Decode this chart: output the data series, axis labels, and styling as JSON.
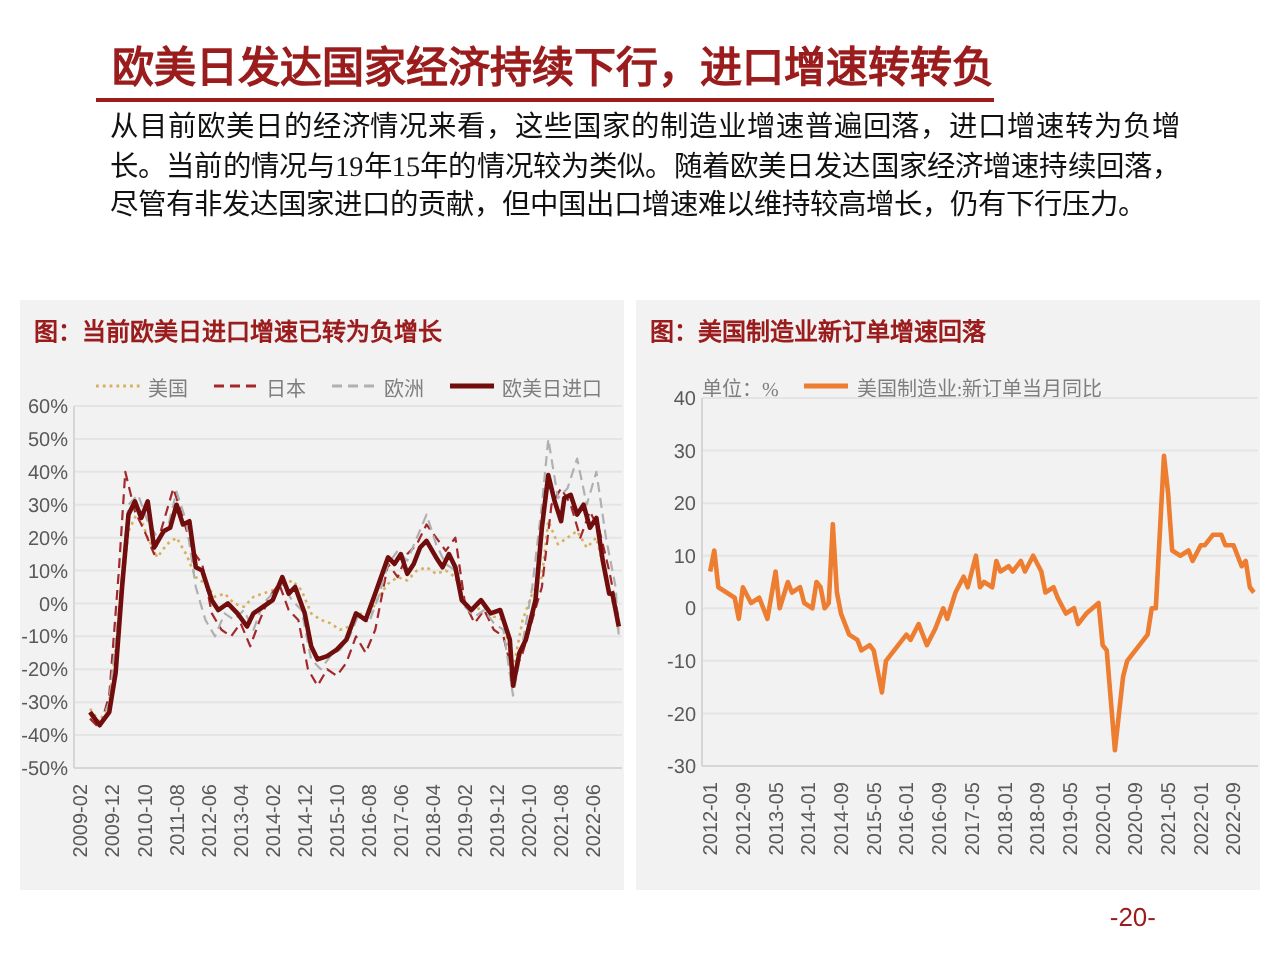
{
  "chart_data": [
    {
      "type": "other",
      "title": "欧美日发达国家经济持续下行，进口增速转转负",
      "subtitle": "从目前欧美日的经济情况来看，这些国家的制造业增速普遍回落，进口增速转为负增长。当前的情况与19年15年的情况较为类似。随着欧美日发达国家经济增速持续回落，尽管有非发达国家进口的贡献，但中国出口增速难以维持较高增长，仍有下行压力。",
      "annotations": [
        "-20-"
      ]
    },
    {
      "type": "line",
      "title": "图：当前欧美日进口增速已转为负增长",
      "legend": "top",
      "grid": "y",
      "xlim": [
        "2008-12",
        "2023-03"
      ],
      "xticks": [
        "2009-02",
        "2009-12",
        "2010-10",
        "2011-08",
        "2012-06",
        "2013-04",
        "2014-02",
        "2014-12",
        "2015-10",
        "2016-08",
        "2017-06",
        "2018-04",
        "2019-02",
        "2019-12",
        "2020-10",
        "2021-08",
        "2022-06"
      ],
      "ylim": [
        -50,
        60
      ],
      "yticks": [
        {
          "value": -50,
          "label": "-50%"
        },
        {
          "value": -40,
          "label": "-40%"
        },
        {
          "value": -30,
          "label": "-30%"
        },
        {
          "value": -20,
          "label": "-20%"
        },
        {
          "value": -10,
          "label": "-10%"
        },
        {
          "value": 0,
          "label": "0%"
        },
        {
          "value": 10,
          "label": "10%"
        },
        {
          "value": 20,
          "label": "20%"
        },
        {
          "value": 30,
          "label": "30%"
        },
        {
          "value": 40,
          "label": "40%"
        },
        {
          "value": 50,
          "label": "50%"
        },
        {
          "value": 60,
          "label": "60%"
        }
      ],
      "series": [
        {
          "name": "美国",
          "color": "#d6b15f",
          "line_style": "dotted",
          "x": [
            "2009-05",
            "2009-08",
            "2009-11",
            "2010-02",
            "2010-05",
            "2010-08",
            "2010-11",
            "2011-02",
            "2011-05",
            "2011-08",
            "2011-11",
            "2012-02",
            "2012-05",
            "2012-08",
            "2012-11",
            "2013-02",
            "2013-05",
            "2013-08",
            "2013-11",
            "2014-02",
            "2014-05",
            "2014-08",
            "2014-11",
            "2015-02",
            "2015-05",
            "2015-08",
            "2015-11",
            "2016-02",
            "2016-05",
            "2016-08",
            "2016-11",
            "2017-02",
            "2017-05",
            "2017-08",
            "2017-11",
            "2018-02",
            "2018-05",
            "2018-08",
            "2018-11",
            "2019-02",
            "2019-05",
            "2019-08",
            "2019-11",
            "2020-02",
            "2020-05",
            "2020-08",
            "2020-11",
            "2021-02",
            "2021-04",
            "2021-07",
            "2021-10",
            "2022-01",
            "2022-04",
            "2022-07",
            "2022-10",
            "2023-01",
            "2023-02"
          ],
          "values": [
            -32,
            -36,
            -30,
            -5,
            22,
            28,
            20,
            14,
            18,
            20,
            15,
            8,
            6,
            2,
            3,
            0,
            -1,
            2,
            3,
            4,
            5,
            7,
            4,
            -3,
            -5,
            -6,
            -8,
            -7,
            -3,
            -4,
            2,
            6,
            8,
            7,
            10,
            11,
            9,
            10,
            8,
            0,
            -2,
            -1,
            -4,
            -5,
            -20,
            -5,
            3,
            8,
            25,
            18,
            20,
            22,
            17,
            20,
            8,
            -3,
            -9
          ]
        },
        {
          "name": "日本",
          "color": "#a3282b",
          "line_style": "dashed",
          "x": [
            "2009-05",
            "2009-08",
            "2009-11",
            "2010-02",
            "2010-04",
            "2010-07",
            "2010-10",
            "2011-01",
            "2011-04",
            "2011-07",
            "2011-10",
            "2012-01",
            "2012-04",
            "2012-07",
            "2012-10",
            "2013-01",
            "2013-04",
            "2013-07",
            "2013-10",
            "2014-01",
            "2014-04",
            "2014-07",
            "2014-10",
            "2015-01",
            "2015-04",
            "2015-07",
            "2015-10",
            "2016-01",
            "2016-04",
            "2016-07",
            "2016-10",
            "2017-02",
            "2017-05",
            "2017-08",
            "2017-11",
            "2018-02",
            "2018-05",
            "2018-08",
            "2018-11",
            "2019-02",
            "2019-05",
            "2019-08",
            "2019-11",
            "2020-02",
            "2020-05",
            "2020-08",
            "2020-11",
            "2021-02",
            "2021-05",
            "2021-08",
            "2021-11",
            "2022-02",
            "2022-05",
            "2022-08",
            "2022-11",
            "2023-02"
          ],
          "values": [
            -35,
            -38,
            -28,
            10,
            40,
            28,
            22,
            15,
            25,
            35,
            26,
            16,
            12,
            -3,
            -8,
            -10,
            -6,
            -13,
            -5,
            2,
            6,
            -2,
            -5,
            -20,
            -25,
            -20,
            -22,
            -18,
            -10,
            -15,
            -8,
            12,
            8,
            15,
            18,
            24,
            20,
            16,
            20,
            0,
            -6,
            -2,
            -8,
            -10,
            -22,
            -15,
            -5,
            5,
            30,
            35,
            30,
            20,
            28,
            22,
            10,
            -5
          ]
        },
        {
          "name": "欧洲",
          "color": "#b0b0b0",
          "line_style": "dashed",
          "x": [
            "2009-05",
            "2009-08",
            "2009-11",
            "2010-02",
            "2010-05",
            "2010-08",
            "2010-11",
            "2011-02",
            "2011-05",
            "2011-08",
            "2011-11",
            "2012-02",
            "2012-05",
            "2012-08",
            "2012-11",
            "2013-02",
            "2013-05",
            "2013-08",
            "2013-11",
            "2014-02",
            "2014-05",
            "2014-08",
            "2014-11",
            "2015-02",
            "2015-05",
            "2015-08",
            "2015-11",
            "2016-02",
            "2016-05",
            "2016-08",
            "2016-11",
            "2017-02",
            "2017-05",
            "2017-08",
            "2017-11",
            "2018-02",
            "2018-05",
            "2018-08",
            "2018-11",
            "2019-02",
            "2019-05",
            "2019-08",
            "2019-11",
            "2020-02",
            "2020-05",
            "2020-08",
            "2020-11",
            "2021-02",
            "2021-04",
            "2021-07",
            "2021-10",
            "2022-01",
            "2022-04",
            "2022-07",
            "2022-10",
            "2023-01",
            "2023-02"
          ],
          "values": [
            -33,
            -37,
            -30,
            -2,
            30,
            33,
            25,
            20,
            22,
            34,
            25,
            5,
            -5,
            -10,
            -3,
            -5,
            -2,
            -8,
            0,
            3,
            6,
            1,
            -2,
            -17,
            -20,
            -16,
            -14,
            -10,
            -3,
            -6,
            2,
            12,
            16,
            13,
            20,
            27,
            18,
            12,
            10,
            -1,
            -4,
            -2,
            -6,
            -8,
            -28,
            -12,
            5,
            30,
            50,
            32,
            35,
            44,
            30,
            40,
            20,
            5,
            -10
          ]
        },
        {
          "name": "欧美日进口",
          "color": "#720d0d",
          "line_style": "solid",
          "x": [
            "2009-05",
            "2009-08",
            "2009-11",
            "2010-01",
            "2010-03",
            "2010-05",
            "2010-07",
            "2010-09",
            "2010-11",
            "2011-01",
            "2011-04",
            "2011-06",
            "2011-08",
            "2011-10",
            "2011-12",
            "2012-02",
            "2012-04",
            "2012-07",
            "2012-09",
            "2012-12",
            "2013-03",
            "2013-06",
            "2013-08",
            "2013-11",
            "2014-02",
            "2014-05",
            "2014-07",
            "2014-09",
            "2014-12",
            "2015-02",
            "2015-04",
            "2015-07",
            "2015-10",
            "2016-01",
            "2016-04",
            "2016-07",
            "2016-10",
            "2017-02",
            "2017-04",
            "2017-06",
            "2017-08",
            "2017-10",
            "2017-12",
            "2018-02",
            "2018-05",
            "2018-07",
            "2018-09",
            "2018-11",
            "2019-01",
            "2019-04",
            "2019-07",
            "2019-10",
            "2020-01",
            "2020-04",
            "2020-05",
            "2020-07",
            "2020-09",
            "2020-11",
            "2020-12",
            "2021-02",
            "2021-04",
            "2021-06",
            "2021-08",
            "2021-09",
            "2021-11",
            "2022-01",
            "2022-03",
            "2022-05",
            "2022-07",
            "2022-09",
            "2022-11",
            "2022-12",
            "2023-02"
          ],
          "values": [
            -33,
            -37,
            -33,
            -21,
            5,
            27,
            31,
            26,
            31,
            17,
            22,
            23,
            30,
            24,
            25,
            11,
            10,
            1,
            -2,
            0,
            -3,
            -7,
            -3,
            -1,
            1,
            8,
            3,
            5,
            -3,
            -13,
            -17,
            -16,
            -14,
            -11,
            -3,
            -5,
            3,
            14,
            12,
            15,
            9,
            12,
            17,
            19,
            14,
            11,
            15,
            11,
            1,
            -2,
            1,
            -3,
            -2,
            -11,
            -25,
            -15,
            -11,
            -3,
            1,
            23,
            39,
            31,
            25,
            32,
            33,
            27,
            30,
            23,
            26,
            13,
            3,
            3,
            -7
          ]
        }
      ]
    },
    {
      "type": "line",
      "title": "图：美国制造业新订单增速回落",
      "annotations": [
        "单位：%"
      ],
      "legend": "top left",
      "grid": "y",
      "xlim": [
        "2011-11",
        "2023-03"
      ],
      "xticks": [
        "2012-01",
        "2012-09",
        "2013-05",
        "2014-01",
        "2014-09",
        "2015-05",
        "2016-01",
        "2016-09",
        "2017-05",
        "2018-01",
        "2018-09",
        "2019-05",
        "2020-01",
        "2020-09",
        "2021-05",
        "2022-01",
        "2022-09"
      ],
      "ylim": [
        -30,
        40
      ],
      "yticks": [
        -30,
        -20,
        -10,
        0,
        10,
        20,
        30,
        40
      ],
      "series": [
        {
          "name": "美国制造业:新订单当月同比",
          "color": "#ed7d31",
          "line_style": "solid",
          "x": [
            "2012-01",
            "2012-02",
            "2012-03",
            "2012-05",
            "2012-07",
            "2012-08",
            "2012-09",
            "2012-11",
            "2013-01",
            "2013-03",
            "2013-05",
            "2013-06",
            "2013-08",
            "2013-09",
            "2013-11",
            "2013-12",
            "2014-02",
            "2014-03",
            "2014-04",
            "2014-05",
            "2014-06",
            "2014-07",
            "2014-08",
            "2014-09",
            "2014-11",
            "2015-01",
            "2015-02",
            "2015-04",
            "2015-05",
            "2015-07",
            "2015-08",
            "2015-09",
            "2015-11",
            "2016-01",
            "2016-02",
            "2016-04",
            "2016-06",
            "2016-08",
            "2016-10",
            "2016-11",
            "2017-01",
            "2017-03",
            "2017-04",
            "2017-06",
            "2017-07",
            "2017-08",
            "2017-10",
            "2017-11",
            "2017-12",
            "2018-02",
            "2018-03",
            "2018-05",
            "2018-06",
            "2018-08",
            "2018-10",
            "2018-11",
            "2019-01",
            "2019-02",
            "2019-04",
            "2019-06",
            "2019-07",
            "2019-09",
            "2019-12",
            "2020-01",
            "2020-02",
            "2020-04",
            "2020-06",
            "2020-07",
            "2020-09",
            "2020-11",
            "2020-12",
            "2021-01",
            "2021-02",
            "2021-04",
            "2021-05",
            "2021-06",
            "2021-08",
            "2021-10",
            "2021-11",
            "2022-01",
            "2022-02",
            "2022-04",
            "2022-06",
            "2022-07",
            "2022-09",
            "2022-11",
            "2022-12",
            "2023-01",
            "2023-02"
          ],
          "values": [
            7,
            11,
            4,
            3,
            2,
            -2,
            4,
            1,
            2,
            -2,
            7,
            0,
            5,
            3,
            4,
            1,
            0,
            5,
            4,
            0,
            1,
            16,
            3,
            -1,
            -5,
            -6,
            -8,
            -7,
            -8,
            -16,
            -10,
            -9,
            -7,
            -5,
            -6,
            -3,
            -7,
            -4,
            0,
            -2,
            3,
            6,
            4,
            10,
            4,
            5,
            4,
            9,
            7,
            8,
            7,
            9,
            7,
            10,
            7,
            3,
            4,
            2,
            -1,
            0,
            -3,
            -1,
            1,
            -7,
            -8,
            -27,
            -13,
            -10,
            -8,
            -6,
            -5,
            0,
            0,
            29,
            22,
            11,
            10,
            11,
            9,
            12,
            12,
            14,
            14,
            12,
            12,
            8,
            9,
            4,
            3
          ]
        }
      ]
    }
  ]
}
